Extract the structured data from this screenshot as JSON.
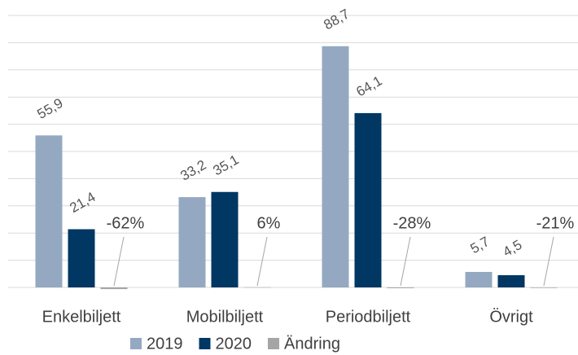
{
  "chart_data": {
    "type": "bar",
    "categories": [
      "Enkelbiljett",
      "Mobilbiljett",
      "Periodbiljett",
      "Övrigt"
    ],
    "series": [
      {
        "name": "2019",
        "color": "#94a9c1",
        "values": [
          55.9,
          33.2,
          88.7,
          5.7
        ],
        "value_labels": [
          "55,9",
          "33,2",
          "88,7",
          "5,7"
        ]
      },
      {
        "name": "2020",
        "color": "#003763",
        "values": [
          21.4,
          35.1,
          64.1,
          4.5
        ],
        "value_labels": [
          "21,4",
          "35,1",
          "64,1",
          "4,5"
        ]
      },
      {
        "name": "Ändring",
        "color": "#a5a5a5",
        "values": [
          -0.62,
          0.06,
          -0.28,
          -0.21
        ],
        "value_labels": [
          "-62%",
          "6%",
          "-28%",
          "-21%"
        ]
      }
    ],
    "ylim": [
      0,
      100
    ],
    "yticks": [
      0,
      10,
      20,
      30,
      40,
      50,
      60,
      70,
      80,
      90,
      100
    ],
    "grid": true
  }
}
